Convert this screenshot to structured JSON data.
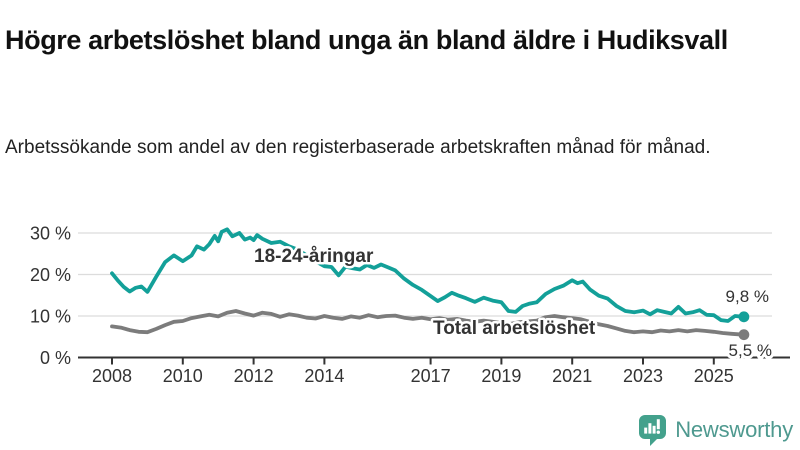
{
  "header": {
    "title": "Högre arbetslöshet bland unga än bland äldre i Hudiksvall",
    "subtitle": "Arbetssökande som andel av den registerbaserade arbetskraften månad för månad."
  },
  "colors": {
    "young_series": "#13a099",
    "total_series": "#7c7c7c",
    "axis": "#333333",
    "grid": "#dcdcdc",
    "title_text": "#111111",
    "logo_teal": "#43a18c",
    "logo_text": "#4e998f"
  },
  "chart_data": {
    "type": "line",
    "title": "Högre arbetslöshet bland unga än bland äldre i Hudiksvall",
    "subtitle": "Arbetssökande som andel av den registerbaserade arbetskraften månad för månad.",
    "xlabel": "",
    "ylabel": "",
    "unit": "%",
    "grid": true,
    "xlim": [
      2007.0,
      2026.6
    ],
    "ylim": [
      0,
      33
    ],
    "x_ticks": [
      2008,
      2010,
      2012,
      2014,
      2017,
      2019,
      2021,
      2023,
      2025
    ],
    "x_tick_labels": [
      "2008",
      "2010",
      "2012",
      "2014",
      "2017",
      "2019",
      "2021",
      "2023",
      "2025"
    ],
    "y_ticks": [
      0,
      10,
      20,
      30
    ],
    "y_tick_labels": [
      "0 %",
      "10 %",
      "20 %",
      "30 %"
    ],
    "series": [
      {
        "name": "18-24-åringar",
        "color": "#13a099",
        "end_label": "9,8 %",
        "end_value": 9.8,
        "points": [
          [
            2008.0,
            20.3
          ],
          [
            2008.17,
            18.5
          ],
          [
            2008.33,
            17.0
          ],
          [
            2008.5,
            15.9
          ],
          [
            2008.67,
            16.8
          ],
          [
            2008.83,
            17.1
          ],
          [
            2009.0,
            15.8
          ],
          [
            2009.25,
            19.5
          ],
          [
            2009.5,
            23.0
          ],
          [
            2009.75,
            24.6
          ],
          [
            2010.0,
            23.2
          ],
          [
            2010.25,
            24.6
          ],
          [
            2010.4,
            26.8
          ],
          [
            2010.6,
            26.0
          ],
          [
            2010.75,
            27.3
          ],
          [
            2010.9,
            29.3
          ],
          [
            2011.0,
            28.0
          ],
          [
            2011.1,
            30.3
          ],
          [
            2011.25,
            30.9
          ],
          [
            2011.4,
            29.2
          ],
          [
            2011.6,
            30.0
          ],
          [
            2011.75,
            28.4
          ],
          [
            2011.9,
            28.9
          ],
          [
            2012.0,
            28.3
          ],
          [
            2012.1,
            29.5
          ],
          [
            2012.25,
            28.6
          ],
          [
            2012.5,
            27.6
          ],
          [
            2012.75,
            27.9
          ],
          [
            2013.0,
            26.8
          ],
          [
            2013.25,
            26.0
          ],
          [
            2013.5,
            24.6
          ],
          [
            2013.75,
            23.2
          ],
          [
            2014.0,
            22.0
          ],
          [
            2014.2,
            21.8
          ],
          [
            2014.4,
            19.8
          ],
          [
            2014.6,
            21.9
          ],
          [
            2014.8,
            21.5
          ],
          [
            2015.0,
            21.2
          ],
          [
            2015.2,
            22.3
          ],
          [
            2015.4,
            21.6
          ],
          [
            2015.6,
            22.4
          ],
          [
            2015.8,
            21.7
          ],
          [
            2016.0,
            21.0
          ],
          [
            2016.25,
            19.0
          ],
          [
            2016.5,
            17.5
          ],
          [
            2016.75,
            16.3
          ],
          [
            2017.0,
            14.8
          ],
          [
            2017.2,
            13.6
          ],
          [
            2017.4,
            14.5
          ],
          [
            2017.6,
            15.6
          ],
          [
            2017.8,
            14.9
          ],
          [
            2018.0,
            14.3
          ],
          [
            2018.25,
            13.4
          ],
          [
            2018.5,
            14.4
          ],
          [
            2018.75,
            13.7
          ],
          [
            2019.0,
            13.3
          ],
          [
            2019.2,
            11.2
          ],
          [
            2019.4,
            11.0
          ],
          [
            2019.6,
            12.4
          ],
          [
            2019.8,
            13.0
          ],
          [
            2020.0,
            13.3
          ],
          [
            2020.25,
            15.3
          ],
          [
            2020.5,
            16.5
          ],
          [
            2020.75,
            17.3
          ],
          [
            2021.0,
            18.6
          ],
          [
            2021.15,
            17.9
          ],
          [
            2021.3,
            18.3
          ],
          [
            2021.5,
            16.4
          ],
          [
            2021.75,
            14.9
          ],
          [
            2022.0,
            14.2
          ],
          [
            2022.25,
            12.4
          ],
          [
            2022.5,
            11.2
          ],
          [
            2022.75,
            10.9
          ],
          [
            2023.0,
            11.3
          ],
          [
            2023.2,
            10.4
          ],
          [
            2023.4,
            11.4
          ],
          [
            2023.6,
            11.0
          ],
          [
            2023.8,
            10.6
          ],
          [
            2024.0,
            12.2
          ],
          [
            2024.2,
            10.6
          ],
          [
            2024.4,
            10.9
          ],
          [
            2024.6,
            11.4
          ],
          [
            2024.8,
            10.3
          ],
          [
            2025.0,
            10.2
          ],
          [
            2025.2,
            9.0
          ],
          [
            2025.4,
            8.8
          ],
          [
            2025.6,
            10.0
          ],
          [
            2025.85,
            9.8
          ]
        ]
      },
      {
        "name": "Total arbetslöshet",
        "color": "#7c7c7c",
        "end_label": "5,5 %",
        "end_value": 5.5,
        "points": [
          [
            2008.0,
            7.5
          ],
          [
            2008.25,
            7.2
          ],
          [
            2008.5,
            6.6
          ],
          [
            2008.75,
            6.2
          ],
          [
            2009.0,
            6.1
          ],
          [
            2009.25,
            6.9
          ],
          [
            2009.5,
            7.8
          ],
          [
            2009.75,
            8.6
          ],
          [
            2010.0,
            8.8
          ],
          [
            2010.25,
            9.5
          ],
          [
            2010.5,
            9.9
          ],
          [
            2010.75,
            10.3
          ],
          [
            2011.0,
            9.9
          ],
          [
            2011.25,
            10.8
          ],
          [
            2011.5,
            11.2
          ],
          [
            2011.75,
            10.6
          ],
          [
            2012.0,
            10.1
          ],
          [
            2012.25,
            10.8
          ],
          [
            2012.5,
            10.5
          ],
          [
            2012.75,
            9.8
          ],
          [
            2013.0,
            10.4
          ],
          [
            2013.25,
            10.1
          ],
          [
            2013.5,
            9.6
          ],
          [
            2013.75,
            9.4
          ],
          [
            2014.0,
            10.0
          ],
          [
            2014.25,
            9.6
          ],
          [
            2014.5,
            9.3
          ],
          [
            2014.75,
            9.9
          ],
          [
            2015.0,
            9.6
          ],
          [
            2015.25,
            10.2
          ],
          [
            2015.5,
            9.7
          ],
          [
            2015.75,
            10.0
          ],
          [
            2016.0,
            10.1
          ],
          [
            2016.25,
            9.6
          ],
          [
            2016.5,
            9.3
          ],
          [
            2016.75,
            9.6
          ],
          [
            2017.0,
            9.2
          ],
          [
            2017.25,
            9.5
          ],
          [
            2017.5,
            9.1
          ],
          [
            2017.75,
            9.3
          ],
          [
            2018.0,
            8.9
          ],
          [
            2018.25,
            8.6
          ],
          [
            2018.5,
            8.9
          ],
          [
            2018.75,
            8.6
          ],
          [
            2019.0,
            8.3
          ],
          [
            2019.25,
            8.1
          ],
          [
            2019.5,
            8.5
          ],
          [
            2019.75,
            8.7
          ],
          [
            2020.0,
            8.9
          ],
          [
            2020.25,
            9.7
          ],
          [
            2020.5,
            10.0
          ],
          [
            2020.75,
            9.7
          ],
          [
            2021.0,
            9.5
          ],
          [
            2021.25,
            9.2
          ],
          [
            2021.5,
            8.6
          ],
          [
            2021.75,
            8.0
          ],
          [
            2022.0,
            7.6
          ],
          [
            2022.25,
            7.0
          ],
          [
            2022.5,
            6.4
          ],
          [
            2022.75,
            6.1
          ],
          [
            2023.0,
            6.3
          ],
          [
            2023.25,
            6.1
          ],
          [
            2023.5,
            6.5
          ],
          [
            2023.75,
            6.3
          ],
          [
            2024.0,
            6.6
          ],
          [
            2024.25,
            6.3
          ],
          [
            2024.5,
            6.6
          ],
          [
            2024.75,
            6.4
          ],
          [
            2025.0,
            6.2
          ],
          [
            2025.25,
            5.9
          ],
          [
            2025.5,
            5.7
          ],
          [
            2025.85,
            5.5
          ]
        ]
      }
    ],
    "legend_position": "inline-labels"
  },
  "footer": {
    "brand": "Newsworthy"
  }
}
